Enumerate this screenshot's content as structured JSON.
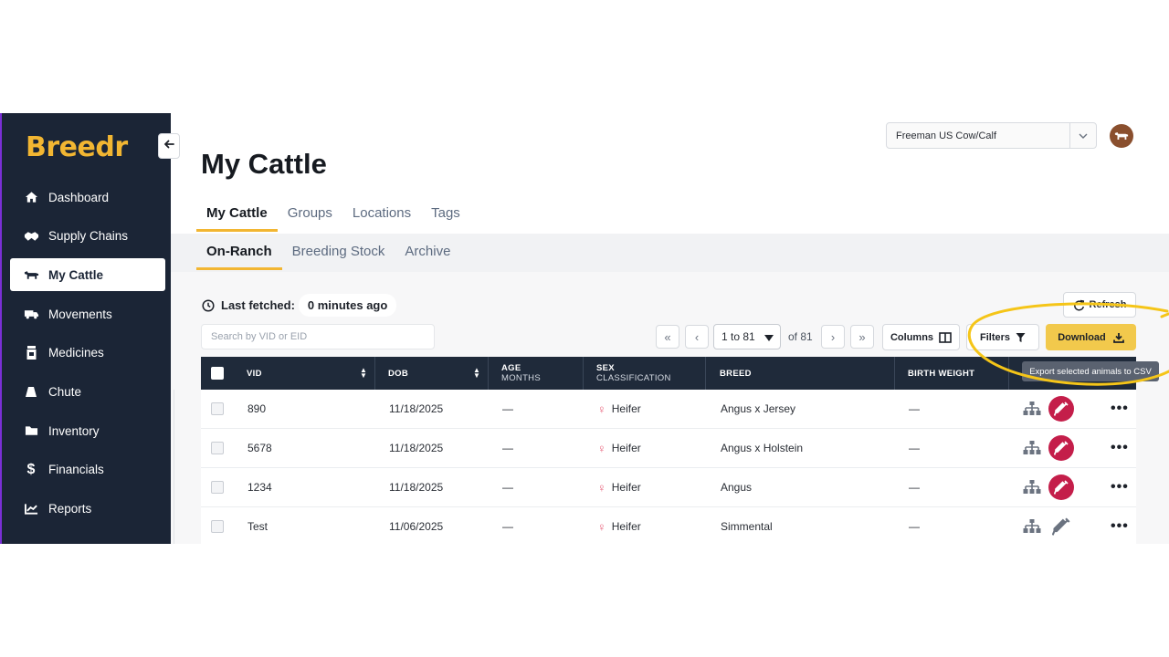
{
  "brand": {
    "logo": "Breedr",
    "accent": "#f2b632",
    "sidebar_bg": "#1b2536"
  },
  "sidebar": {
    "items": [
      {
        "label": "Dashboard",
        "icon": "home-icon"
      },
      {
        "label": "Supply Chains",
        "icon": "handshake-icon"
      },
      {
        "label": "My Cattle",
        "icon": "cow-icon",
        "active": true
      },
      {
        "label": "Movements",
        "icon": "truck-icon"
      },
      {
        "label": "Medicines",
        "icon": "medicine-bottle-icon"
      },
      {
        "label": "Chute",
        "icon": "chute-icon"
      },
      {
        "label": "Inventory",
        "icon": "folder-icon"
      },
      {
        "label": "Financials",
        "icon": "dollar-icon"
      },
      {
        "label": "Reports",
        "icon": "chart-line-icon"
      }
    ]
  },
  "header": {
    "title": "My Cattle",
    "ranch_select": "Freeman US Cow/Calf"
  },
  "tabs": [
    "My Cattle",
    "Groups",
    "Locations",
    "Tags"
  ],
  "subtabs": [
    "On-Ranch",
    "Breeding Stock",
    "Archive"
  ],
  "toolbar": {
    "last_fetched_label": "Last fetched:",
    "last_fetched_value": "0 minutes ago",
    "refresh_label": "Refresh",
    "search_placeholder": "Search by VID or EID",
    "page_range": "1 to 81",
    "page_of": "of 81",
    "columns_label": "Columns",
    "filters_label": "Filters",
    "download_label": "Download",
    "download_tooltip": "Export selected animals to CSV"
  },
  "table": {
    "columns": [
      {
        "label": "VID"
      },
      {
        "label": "DOB"
      },
      {
        "label": "AGE",
        "sub": "MONTHS"
      },
      {
        "label": "SEX",
        "sub": "CLASSIFICATION"
      },
      {
        "label": "BREED"
      },
      {
        "label": "BIRTH WEIGHT"
      }
    ],
    "rows": [
      {
        "vid": "890",
        "dob": "11/18/2025",
        "age": "—",
        "sex": "Heifer",
        "breed": "Angus x Jersey",
        "birth_weight": "—",
        "treatment": true
      },
      {
        "vid": "5678",
        "dob": "11/18/2025",
        "age": "—",
        "sex": "Heifer",
        "breed": "Angus x Holstein",
        "birth_weight": "—",
        "treatment": true
      },
      {
        "vid": "1234",
        "dob": "11/18/2025",
        "age": "—",
        "sex": "Heifer",
        "breed": "Angus",
        "birth_weight": "—",
        "treatment": true
      },
      {
        "vid": "Test",
        "dob": "11/06/2025",
        "age": "—",
        "sex": "Heifer",
        "breed": "Simmental",
        "birth_weight": "—",
        "treatment": false
      }
    ]
  }
}
